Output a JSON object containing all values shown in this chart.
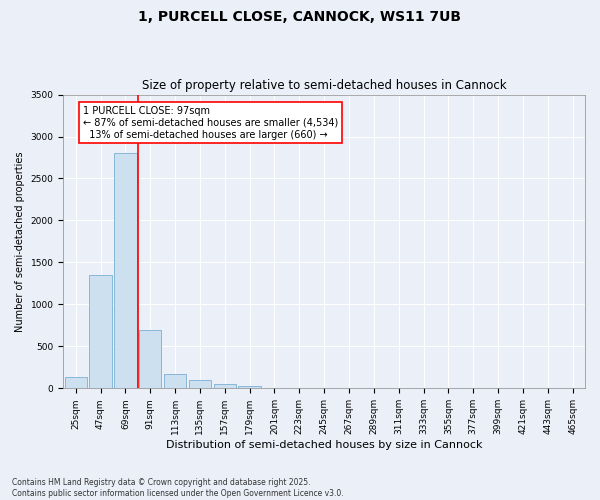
{
  "title": "1, PURCELL CLOSE, CANNOCK, WS11 7UB",
  "subtitle": "Size of property relative to semi-detached houses in Cannock",
  "xlabel": "Distribution of semi-detached houses by size in Cannock",
  "ylabel": "Number of semi-detached properties",
  "categories": [
    "25sqm",
    "47sqm",
    "69sqm",
    "91sqm",
    "113sqm",
    "135sqm",
    "157sqm",
    "179sqm",
    "201sqm",
    "223sqm",
    "245sqm",
    "267sqm",
    "289sqm",
    "311sqm",
    "333sqm",
    "355sqm",
    "377sqm",
    "399sqm",
    "421sqm",
    "443sqm",
    "465sqm"
  ],
  "values": [
    130,
    1350,
    2800,
    700,
    170,
    100,
    50,
    30,
    0,
    0,
    0,
    0,
    0,
    0,
    0,
    0,
    0,
    0,
    0,
    0,
    0
  ],
  "bar_color": "#cce0f0",
  "bar_edge_color": "#7aafd4",
  "vline_position": 2.5,
  "vline_color": "red",
  "annotation_text": "1 PURCELL CLOSE: 97sqm\n← 87% of semi-detached houses are smaller (4,534)\n  13% of semi-detached houses are larger (660) →",
  "annotation_box_color": "white",
  "annotation_box_edge": "red",
  "ylim": [
    0,
    3500
  ],
  "yticks": [
    0,
    500,
    1000,
    1500,
    2000,
    2500,
    3000,
    3500
  ],
  "background_color": "#eaeff8",
  "plot_bg_color": "#eaeff8",
  "footer": "Contains HM Land Registry data © Crown copyright and database right 2025.\nContains public sector information licensed under the Open Government Licence v3.0.",
  "title_fontsize": 10,
  "subtitle_fontsize": 8.5,
  "xlabel_fontsize": 8,
  "ylabel_fontsize": 7,
  "tick_fontsize": 6.5,
  "footer_fontsize": 5.5,
  "annot_fontsize": 7
}
